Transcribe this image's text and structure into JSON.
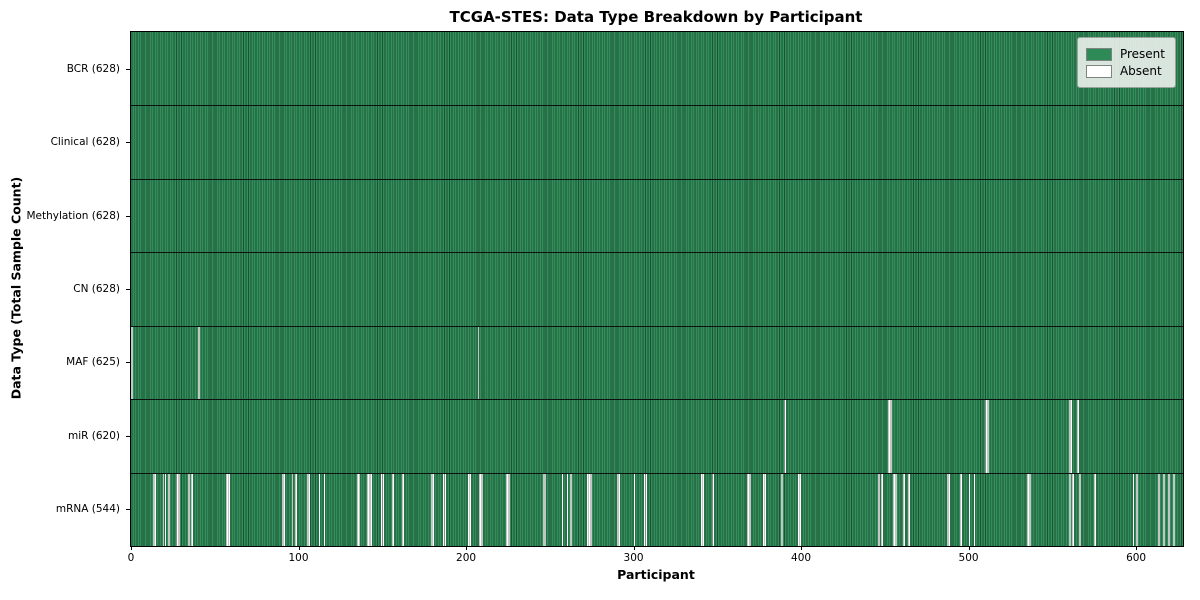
{
  "chart_data": {
    "type": "heatmap",
    "title": "TCGA-STES: Data Type Breakdown by Participant",
    "xlabel": "Participant",
    "ylabel": "Data Type (Total Sample Count)",
    "n_participants": 628,
    "x_ticks": [
      0,
      100,
      200,
      300,
      400,
      500,
      600
    ],
    "grid": false,
    "legend_position": "upper right",
    "legend": [
      {
        "label": "Present",
        "color": "#2e8b57"
      },
      {
        "label": "Absent",
        "color": "#ffffff"
      }
    ],
    "colors": {
      "present": "#2e8b57",
      "absent": "#ffffff",
      "edge": "#0d120e"
    },
    "rows": [
      {
        "data_type": "BCR",
        "label": "BCR (628)",
        "present_count": 628,
        "absent_indices": []
      },
      {
        "data_type": "Clinical",
        "label": "Clinical (628)",
        "present_count": 628,
        "absent_indices": []
      },
      {
        "data_type": "Methylation",
        "label": "Methylation (628)",
        "present_count": 628,
        "absent_indices": []
      },
      {
        "data_type": "CN",
        "label": "CN (628)",
        "present_count": 628,
        "absent_indices": []
      },
      {
        "data_type": "MAF",
        "label": "MAF (625)",
        "present_count": 625,
        "absent_indices": [
          0,
          40,
          207
        ]
      },
      {
        "data_type": "miR",
        "label": "miR (620)",
        "present_count": 620,
        "absent_indices": [
          390,
          452,
          453,
          510,
          511,
          560,
          561,
          565
        ]
      },
      {
        "data_type": "mRNA",
        "label": "mRNA (544)",
        "present_count": 544,
        "absent_indices": [
          13,
          14,
          19,
          20,
          22,
          27,
          28,
          34,
          36,
          57,
          58,
          90,
          91,
          96,
          98,
          105,
          106,
          112,
          115,
          135,
          136,
          141,
          142,
          143,
          149,
          150,
          156,
          162,
          179,
          180,
          186,
          187,
          201,
          202,
          208,
          209,
          224,
          225,
          246,
          247,
          257,
          260,
          262,
          272,
          273,
          274,
          290,
          291,
          300,
          306,
          307,
          340,
          341,
          347,
          368,
          369,
          377,
          378,
          388,
          398,
          399,
          446,
          448,
          455,
          456,
          461,
          464,
          487,
          488,
          495,
          500,
          503,
          535,
          536,
          560,
          562,
          566,
          575,
          598,
          600,
          613,
          616,
          619,
          622
        ]
      }
    ]
  }
}
